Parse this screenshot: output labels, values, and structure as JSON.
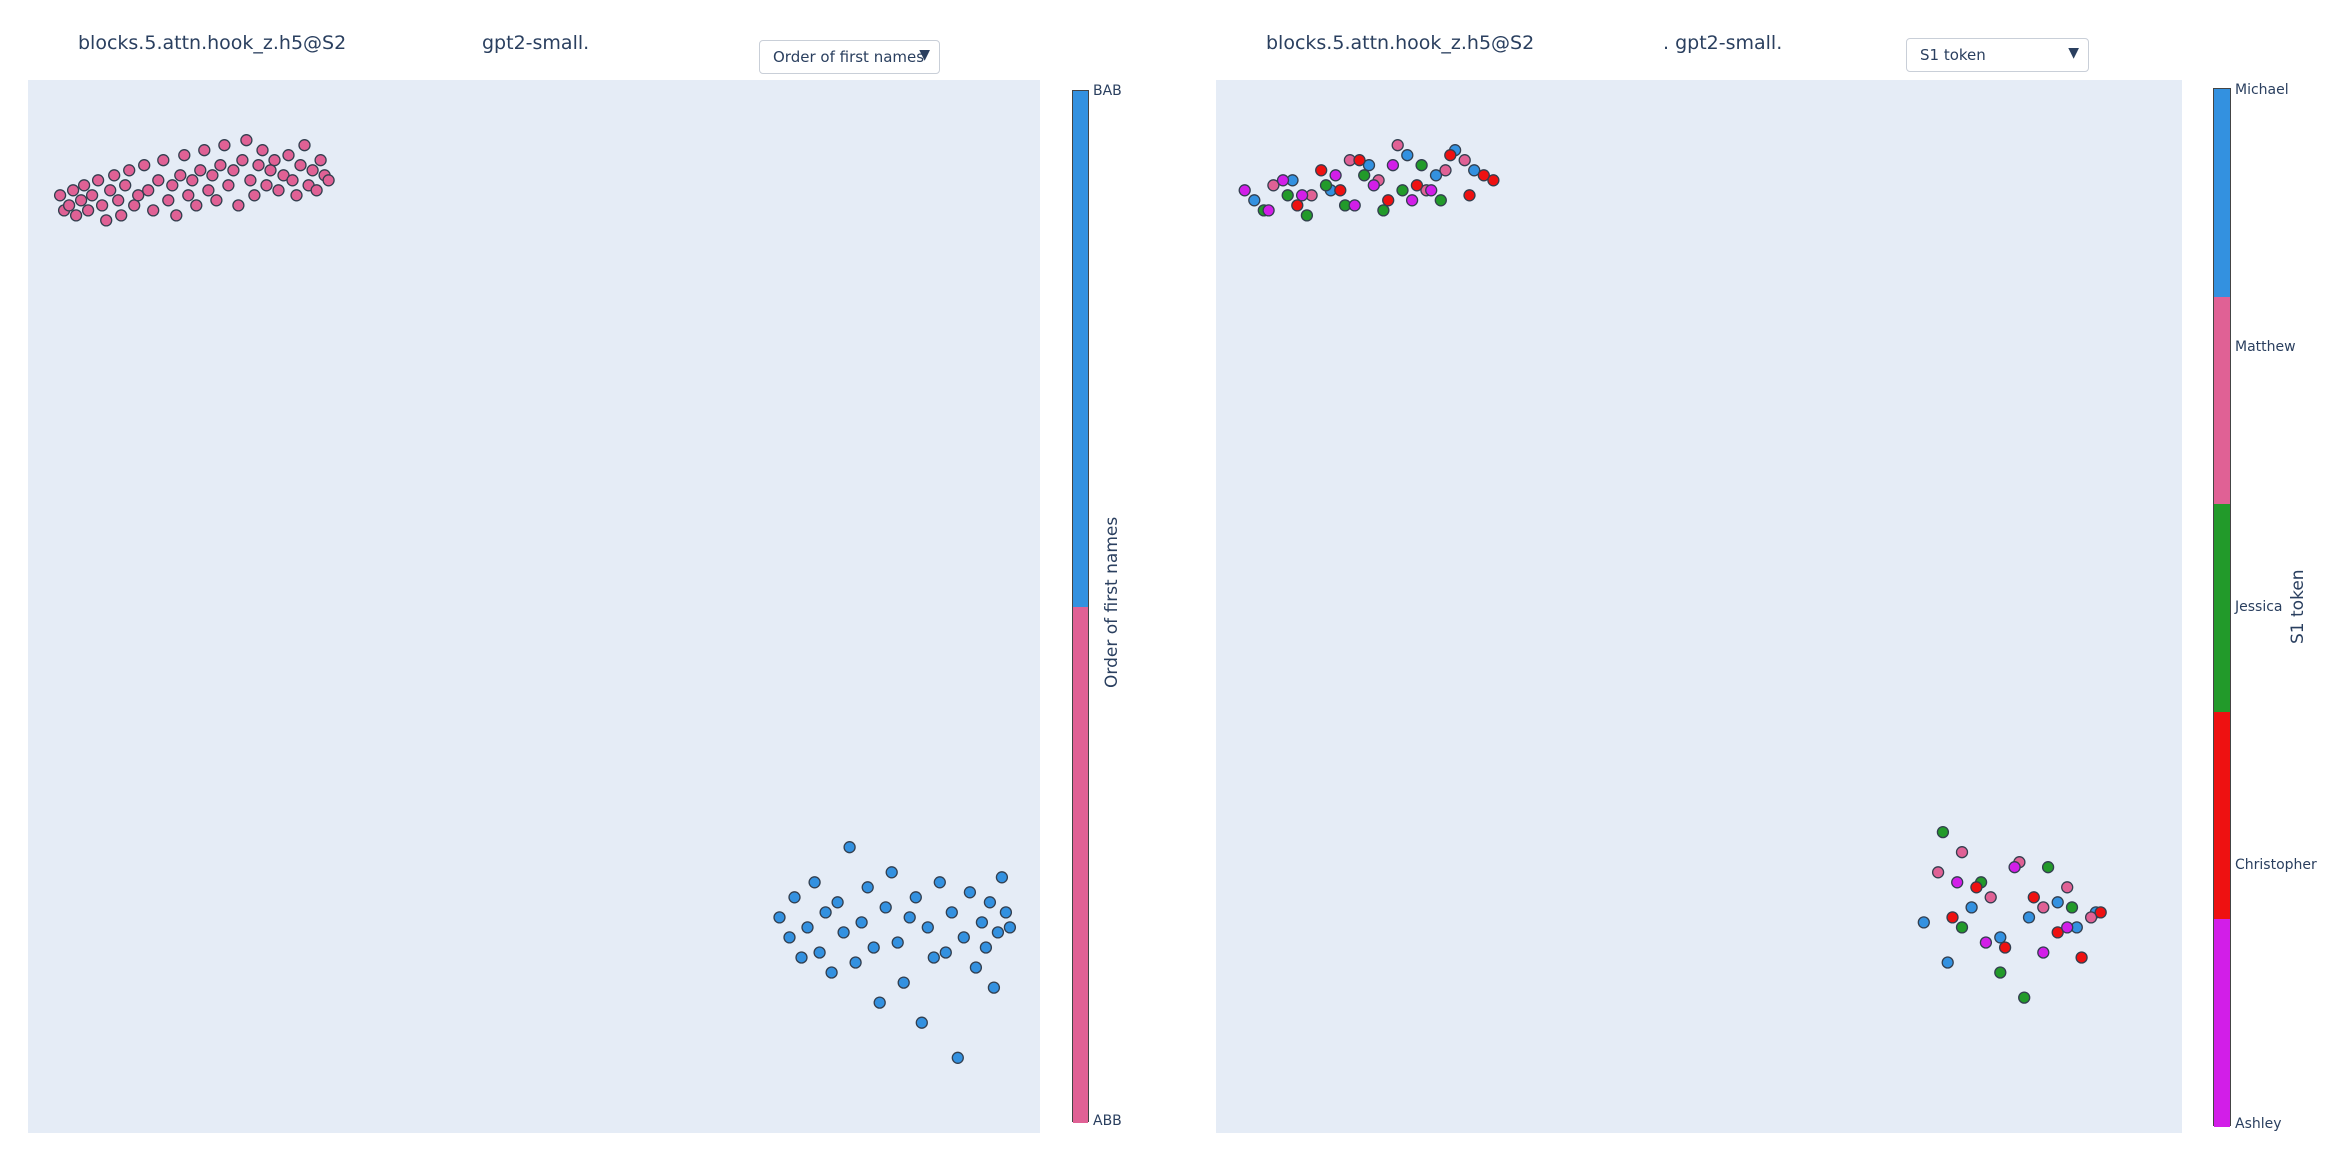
{
  "panels": [
    {
      "title_left": "blocks.5.attn.hook_z.h5@S2",
      "title_right": "gpt2-small.",
      "dropdown": "Order of first names",
      "colorbar": {
        "title": "Order of first names",
        "categories": [
          {
            "label": "BAB",
            "color": "#3391e0"
          },
          {
            "label": "ABB",
            "color": "#e06195"
          }
        ]
      }
    },
    {
      "title_left": "blocks.5.attn.hook_z.h5@S2",
      "title_right": ". gpt2-small.",
      "dropdown": "S1 token",
      "colorbar": {
        "title": "S1 token",
        "categories": [
          {
            "label": "Michael",
            "color": "#3391e0"
          },
          {
            "label": "Matthew",
            "color": "#e06195"
          },
          {
            "label": "Jessica",
            "color": "#229a2a"
          },
          {
            "label": "Christopher",
            "color": "#ee1111"
          },
          {
            "label": "Ashley",
            "color": "#d21ee8"
          }
        ]
      }
    }
  ],
  "chart_data": [
    {
      "type": "scatter",
      "title": "",
      "xlabel": "",
      "ylabel": "",
      "grid": false,
      "legend": "colorbar-right",
      "series": [
        {
          "name": "ABB",
          "color": "#e06195",
          "x": [
            12,
            16,
            21,
            25,
            28,
            33,
            36,
            40,
            44,
            50,
            54,
            58,
            62,
            66,
            70,
            73,
            77,
            81,
            86,
            90,
            96,
            100,
            105,
            110,
            115,
            120,
            124,
            128,
            132,
            136,
            140,
            144,
            148,
            152,
            156,
            160,
            164,
            168,
            172,
            176,
            180,
            185,
            190,
            194,
            198,
            202,
            206,
            210,
            214,
            218,
            222,
            226,
            230,
            235,
            240,
            244,
            248,
            252,
            256,
            260,
            264,
            268,
            272,
            276,
            280
          ],
          "y": [
            8.2,
            7.9,
            8.0,
            8.3,
            7.8,
            8.1,
            8.4,
            7.9,
            8.2,
            8.5,
            8.0,
            7.7,
            8.3,
            8.6,
            8.1,
            7.8,
            8.4,
            8.7,
            8.0,
            8.2,
            8.8,
            8.3,
            7.9,
            8.5,
            8.9,
            8.1,
            8.4,
            7.8,
            8.6,
            9.0,
            8.2,
            8.5,
            8.0,
            8.7,
            9.1,
            8.3,
            8.6,
            8.1,
            8.8,
            9.2,
            8.4,
            8.7,
            8.0,
            8.9,
            9.3,
            8.5,
            8.2,
            8.8,
            9.1,
            8.4,
            8.7,
            8.9,
            8.3,
            8.6,
            9.0,
            8.5,
            8.2,
            8.8,
            9.2,
            8.4,
            8.7,
            8.3,
            8.9,
            8.6,
            8.5
          ]
        },
        {
          "name": "BAB",
          "color": "#3391e0",
          "x": [
            730,
            740,
            745,
            752,
            758,
            765,
            770,
            776,
            782,
            788,
            794,
            800,
            806,
            812,
            818,
            824,
            830,
            836,
            842,
            848,
            854,
            860,
            866,
            872,
            878,
            884,
            890,
            896,
            902,
            908,
            914,
            920,
            926,
            932,
            936,
            940,
            944,
            948,
            952,
            956,
            960
          ],
          "y": [
            -6.2,
            -6.6,
            -5.8,
            -7.0,
            -6.4,
            -5.5,
            -6.9,
            -6.1,
            -7.3,
            -5.9,
            -6.5,
            -4.8,
            -7.1,
            -6.3,
            -5.6,
            -6.8,
            -7.9,
            -6.0,
            -5.3,
            -6.7,
            -7.5,
            -6.2,
            -5.8,
            -8.3,
            -6.4,
            -7.0,
            -5.5,
            -6.9,
            -6.1,
            -9.0,
            -6.6,
            -5.7,
            -7.2,
            -6.3,
            -6.8,
            -5.9,
            -7.6,
            -6.5,
            -5.4,
            -6.1,
            -6.4
          ]
        }
      ]
    },
    {
      "type": "scatter",
      "title": "",
      "xlabel": "",
      "ylabel": "",
      "grid": false,
      "legend": "colorbar-right",
      "series": [
        {
          "name": "Michael",
          "color": "#3391e0",
          "x": [
            20,
            60,
            100,
            140,
            180,
            210,
            230,
            250,
            720,
            745,
            770,
            800,
            830,
            860,
            880,
            900
          ],
          "y": [
            8.1,
            8.5,
            8.3,
            8.8,
            9.0,
            8.6,
            9.1,
            8.7,
            -6.3,
            -7.1,
            -6.0,
            -6.6,
            -6.2,
            -5.9,
            -6.4,
            -6.1
          ]
        },
        {
          "name": "Matthew",
          "color": "#e06195",
          "x": [
            40,
            80,
            120,
            150,
            170,
            200,
            220,
            240,
            735,
            760,
            790,
            820,
            845,
            870,
            895
          ],
          "y": [
            8.4,
            8.2,
            8.9,
            8.5,
            9.2,
            8.3,
            8.7,
            8.9,
            -5.3,
            -4.9,
            -5.8,
            -5.1,
            -6.0,
            -5.6,
            -6.2
          ]
        },
        {
          "name": "Jessica",
          "color": "#229a2a",
          "x": [
            30,
            55,
            75,
            95,
            115,
            135,
            155,
            175,
            195,
            215,
            740,
            760,
            780,
            800,
            825,
            850,
            875
          ],
          "y": [
            7.9,
            8.2,
            7.8,
            8.4,
            8.0,
            8.6,
            7.9,
            8.3,
            8.8,
            8.1,
            -4.5,
            -6.4,
            -5.5,
            -7.3,
            -7.8,
            -5.2,
            -6.0
          ]
        },
        {
          "name": "Christopher",
          "color": "#ee1111",
          "x": [
            65,
            90,
            110,
            130,
            160,
            190,
            225,
            245,
            260,
            270,
            750,
            775,
            805,
            835,
            860,
            885,
            905
          ],
          "y": [
            8.0,
            8.7,
            8.3,
            8.9,
            8.1,
            8.4,
            9.0,
            8.2,
            8.6,
            8.5,
            -6.2,
            -5.6,
            -6.8,
            -5.8,
            -6.5,
            -7.0,
            -6.1
          ]
        },
        {
          "name": "Ashley",
          "color": "#d21ee8",
          "x": [
            10,
            35,
            50,
            70,
            105,
            125,
            145,
            165,
            185,
            205,
            755,
            785,
            815,
            845,
            870
          ],
          "y": [
            8.3,
            7.9,
            8.5,
            8.2,
            8.6,
            8.0,
            8.4,
            8.8,
            8.1,
            8.3,
            -5.5,
            -6.7,
            -5.2,
            -6.9,
            -6.4
          ]
        }
      ]
    }
  ]
}
